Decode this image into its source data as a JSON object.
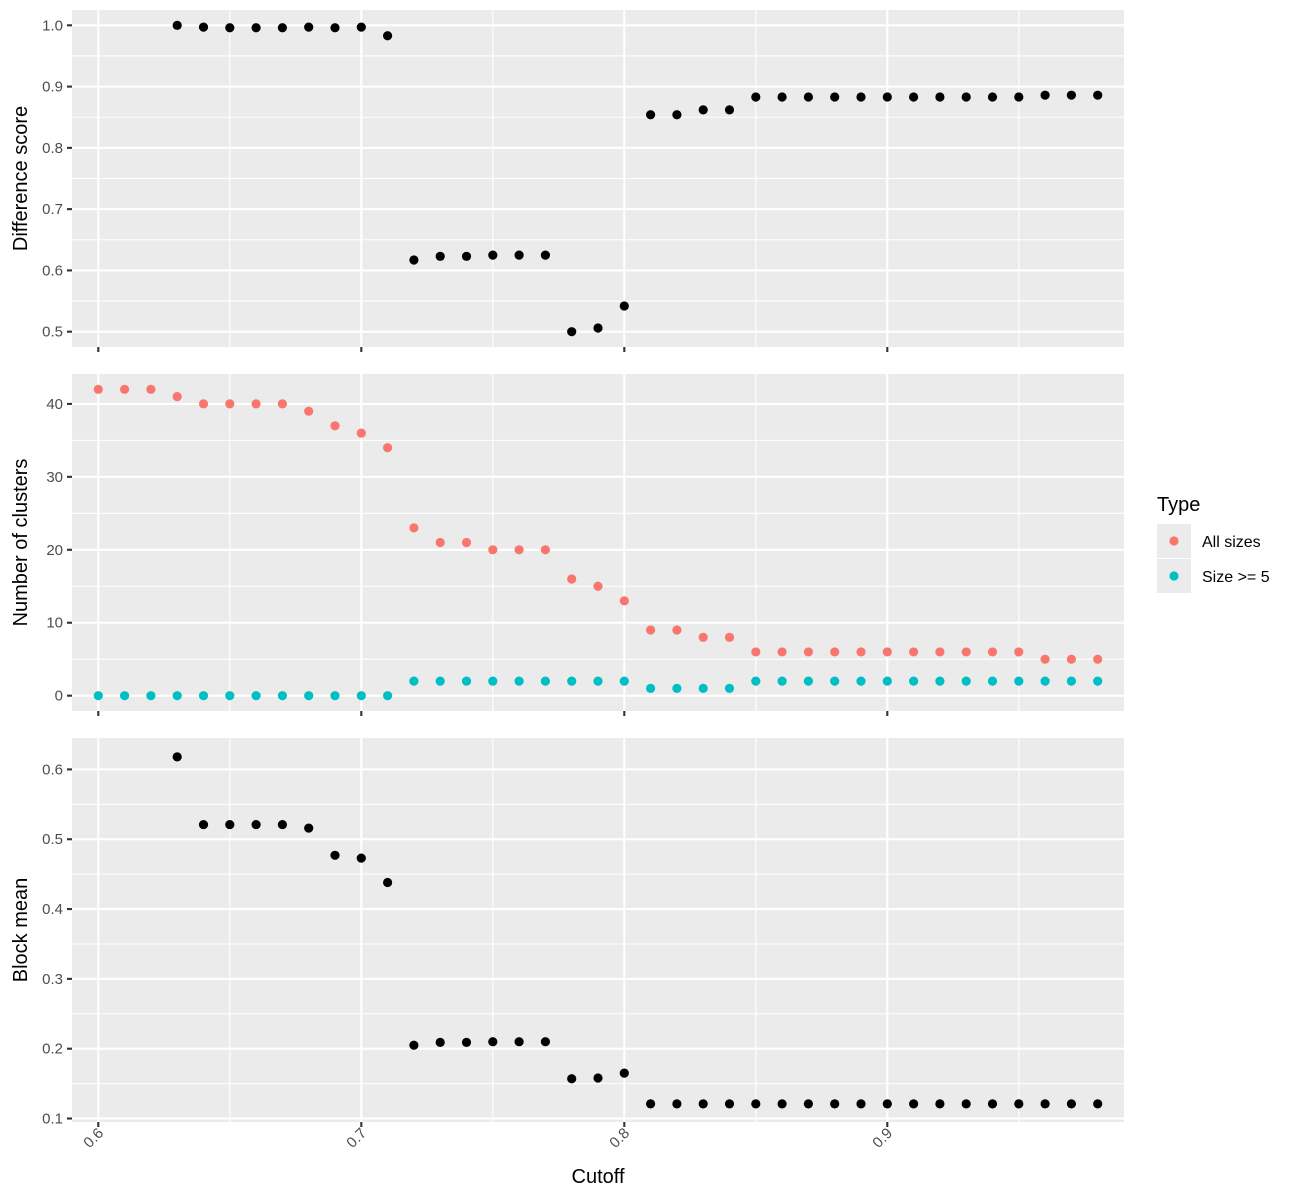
{
  "chart_data": [
    {
      "type": "scatter",
      "id": "difference",
      "ylabel": "Difference score",
      "xlabel": "",
      "xlim": [
        0.59,
        0.99
      ],
      "ylim": [
        0.475,
        1.025
      ],
      "yticks": [
        0.5,
        0.6,
        0.7,
        0.8,
        0.9,
        1.0
      ],
      "ytick_labels": [
        "0.5",
        "0.6",
        "0.7",
        "0.8",
        "0.9",
        "1.0"
      ],
      "xticks": [
        0.6,
        0.7,
        0.8,
        0.9
      ],
      "show_x_tick_labels": false,
      "grid": true,
      "series": [
        {
          "color": "#000000",
          "x": [
            0.63,
            0.64,
            0.65,
            0.66,
            0.67,
            0.68,
            0.69,
            0.7,
            0.71,
            0.72,
            0.73,
            0.74,
            0.75,
            0.76,
            0.77,
            0.78,
            0.79,
            0.8,
            0.81,
            0.82,
            0.83,
            0.84,
            0.85,
            0.86,
            0.87,
            0.88,
            0.89,
            0.9,
            0.91,
            0.92,
            0.93,
            0.94,
            0.95,
            0.96,
            0.97,
            0.98
          ],
          "y": [
            1.0,
            0.997,
            0.996,
            0.996,
            0.996,
            0.997,
            0.996,
            0.997,
            0.983,
            0.617,
            0.623,
            0.623,
            0.625,
            0.625,
            0.625,
            0.5,
            0.506,
            0.542,
            0.854,
            0.854,
            0.862,
            0.862,
            0.883,
            0.883,
            0.883,
            0.883,
            0.883,
            0.883,
            0.883,
            0.883,
            0.883,
            0.883,
            0.883,
            0.886,
            0.886,
            0.886
          ]
        }
      ]
    },
    {
      "type": "scatter",
      "id": "clusters",
      "ylabel": "Number of clusters",
      "xlabel": "",
      "xlim": [
        0.59,
        0.99
      ],
      "ylim": [
        -2.1,
        44.1
      ],
      "yticks": [
        0,
        10,
        20,
        30,
        40
      ],
      "ytick_labels": [
        "0",
        "10",
        "20",
        "30",
        "40"
      ],
      "xticks": [
        0.6,
        0.7,
        0.8,
        0.9
      ],
      "show_x_tick_labels": false,
      "grid": true,
      "legend": {
        "title": "Type",
        "position": "right"
      },
      "series": [
        {
          "name": "All sizes",
          "color": "#F8766D",
          "x": [
            0.6,
            0.61,
            0.62,
            0.63,
            0.64,
            0.65,
            0.66,
            0.67,
            0.68,
            0.69,
            0.7,
            0.71,
            0.72,
            0.73,
            0.74,
            0.75,
            0.76,
            0.77,
            0.78,
            0.79,
            0.8,
            0.81,
            0.82,
            0.83,
            0.84,
            0.85,
            0.86,
            0.87,
            0.88,
            0.89,
            0.9,
            0.91,
            0.92,
            0.93,
            0.94,
            0.95,
            0.96,
            0.97,
            0.98
          ],
          "y": [
            42,
            42,
            42,
            41,
            40,
            40,
            40,
            40,
            39,
            37,
            36,
            34,
            23,
            21,
            21,
            20,
            20,
            20,
            16,
            15,
            13,
            9,
            9,
            8,
            8,
            6,
            6,
            6,
            6,
            6,
            6,
            6,
            6,
            6,
            6,
            6,
            5,
            5,
            5
          ]
        },
        {
          "name": "Size >= 5",
          "color": "#00BFC4",
          "x": [
            0.6,
            0.61,
            0.62,
            0.63,
            0.64,
            0.65,
            0.66,
            0.67,
            0.68,
            0.69,
            0.7,
            0.71,
            0.72,
            0.73,
            0.74,
            0.75,
            0.76,
            0.77,
            0.78,
            0.79,
            0.8,
            0.81,
            0.82,
            0.83,
            0.84,
            0.85,
            0.86,
            0.87,
            0.88,
            0.89,
            0.9,
            0.91,
            0.92,
            0.93,
            0.94,
            0.95,
            0.96,
            0.97,
            0.98
          ],
          "y": [
            0,
            0,
            0,
            0,
            0,
            0,
            0,
            0,
            0,
            0,
            0,
            0,
            2,
            2,
            2,
            2,
            2,
            2,
            2,
            2,
            2,
            1,
            1,
            1,
            1,
            2,
            2,
            2,
            2,
            2,
            2,
            2,
            2,
            2,
            2,
            2,
            2,
            2,
            2
          ]
        }
      ]
    },
    {
      "type": "scatter",
      "id": "blockmean",
      "ylabel": "Block mean",
      "xlabel": "Cutoff",
      "xlim": [
        0.59,
        0.99
      ],
      "ylim": [
        0.095,
        0.645
      ],
      "yticks": [
        0.1,
        0.2,
        0.3,
        0.4,
        0.5,
        0.6
      ],
      "ytick_labels": [
        "0.1",
        "0.2",
        "0.3",
        "0.4",
        "0.5",
        "0.6"
      ],
      "xticks": [
        0.6,
        0.7,
        0.8,
        0.9
      ],
      "xtick_labels": [
        "0.6",
        "0.7",
        "0.8",
        "0.9"
      ],
      "show_x_tick_labels": true,
      "grid": true,
      "series": [
        {
          "color": "#000000",
          "x": [
            0.63,
            0.64,
            0.65,
            0.66,
            0.67,
            0.68,
            0.69,
            0.7,
            0.71,
            0.72,
            0.73,
            0.74,
            0.75,
            0.76,
            0.77,
            0.78,
            0.79,
            0.8,
            0.81,
            0.82,
            0.83,
            0.84,
            0.85,
            0.86,
            0.87,
            0.88,
            0.89,
            0.9,
            0.91,
            0.92,
            0.93,
            0.94,
            0.95,
            0.96,
            0.97,
            0.98
          ],
          "y": [
            0.618,
            0.521,
            0.521,
            0.521,
            0.521,
            0.516,
            0.477,
            0.473,
            0.438,
            0.205,
            0.209,
            0.209,
            0.21,
            0.21,
            0.21,
            0.157,
            0.158,
            0.165,
            0.121,
            0.121,
            0.121,
            0.121,
            0.121,
            0.121,
            0.121,
            0.121,
            0.121,
            0.121,
            0.121,
            0.121,
            0.121,
            0.121,
            0.121,
            0.121,
            0.121,
            0.121
          ]
        }
      ]
    }
  ]
}
